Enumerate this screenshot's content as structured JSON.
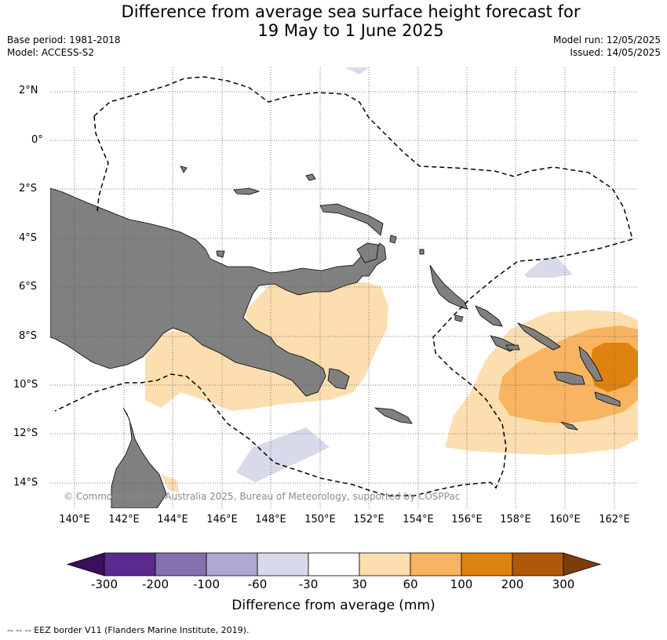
{
  "title": {
    "line1": "Difference from average sea surface height forecast for",
    "line2": "19 May to 1 June 2025"
  },
  "meta": {
    "base_period": "Base period: 1981-2018",
    "model": "Model: ACCESS-S2",
    "model_run": "Model run: 12/05/2025",
    "issued": "Issued: 14/05/2025"
  },
  "map": {
    "lat_labels": [
      "2°N",
      "0°",
      "2°S",
      "4°S",
      "6°S",
      "8°S",
      "10°S",
      "12°S",
      "14°S"
    ],
    "lon_labels": [
      "140°E",
      "142°E",
      "144°E",
      "146°E",
      "148°E",
      "150°E",
      "152°E",
      "154°E",
      "156°E",
      "158°E",
      "160°E",
      "162°E"
    ],
    "copyright": "© Commonwealth of Australia 2025, Bureau of Meteorology, supported by COSPPac",
    "land_color": "#808080",
    "gridline_style": "dotted"
  },
  "colorbar": {
    "title": "Difference from average (mm)",
    "tick_labels": [
      "-300",
      "-200",
      "-100",
      "-60",
      "-30",
      "30",
      "60",
      "100",
      "200",
      "300"
    ],
    "colors": [
      "#3a0f5c",
      "#5b2a8e",
      "#8370ae",
      "#b0a8d2",
      "#d8d9ea",
      "#ffffff",
      "#fddeb0",
      "#f8b460",
      "#e0820f",
      "#b15806",
      "#7d3d0a"
    ]
  },
  "footer": "--  --  -- EEZ border V11 (Flanders Marine Institute, 2019)."
}
